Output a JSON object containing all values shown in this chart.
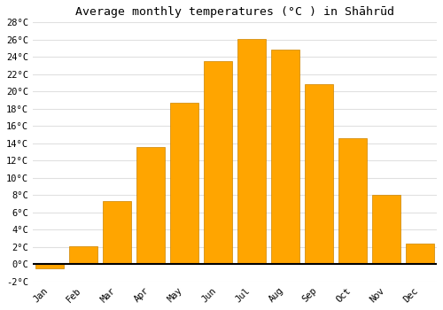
{
  "title": "Average monthly temperatures (°C ) in Shāhrūd",
  "months": [
    "Jan",
    "Feb",
    "Mar",
    "Apr",
    "May",
    "Jun",
    "Jul",
    "Aug",
    "Sep",
    "Oct",
    "Nov",
    "Dec"
  ],
  "values": [
    -0.5,
    2.1,
    7.3,
    13.6,
    18.7,
    23.5,
    26.1,
    24.8,
    20.8,
    14.6,
    8.0,
    2.4
  ],
  "bar_color": "#FFA500",
  "bar_edge_color": "#CC8400",
  "ylim": [
    -2,
    28
  ],
  "yticks": [
    -2,
    0,
    2,
    4,
    6,
    8,
    10,
    12,
    14,
    16,
    18,
    20,
    22,
    24,
    26,
    28
  ],
  "background_color": "#ffffff",
  "grid_color": "#e0e0e0",
  "title_fontsize": 9.5,
  "tick_fontsize": 7.5
}
